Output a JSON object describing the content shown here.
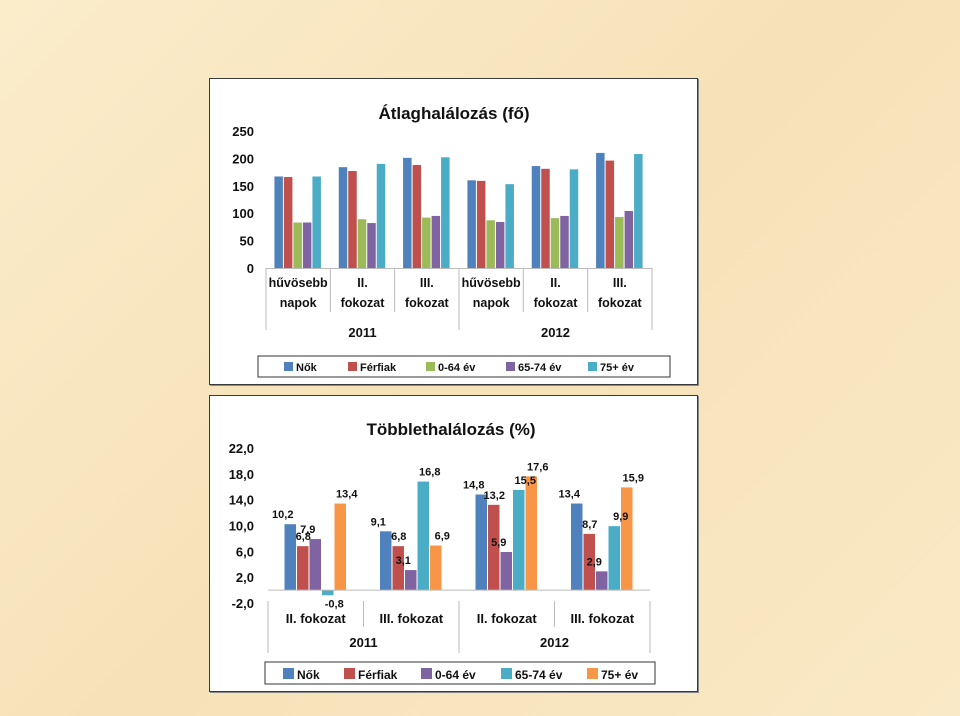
{
  "colors": {
    "blue": "#4f81bd",
    "red": "#c0504d",
    "green": "#9bbb59",
    "purple": "#8064a2",
    "teal": "#4bacc6",
    "orange": "#f79646"
  },
  "chart_data": [
    {
      "type": "bar",
      "title": "Átlaghalálozás (fő)",
      "categories": [
        "hűvösebb napok",
        "II. fokozat",
        "III. fokozat",
        "hűvösebb napok",
        "II. fokozat",
        "III. fokozat"
      ],
      "category_lines": [
        [
          "hűvösebb",
          "napok"
        ],
        [
          "II.",
          "fokozat"
        ],
        [
          "III.",
          "fokozat"
        ],
        [
          "hűvösebb",
          "napok"
        ],
        [
          "II.",
          "fokozat"
        ],
        [
          "III.",
          "fokozat"
        ]
      ],
      "groups": [
        "2011",
        "2012"
      ],
      "ylim": [
        0,
        250
      ],
      "yticks": [
        "0",
        "50",
        "100",
        "150",
        "200",
        "250"
      ],
      "legend_position": "bottom",
      "series": [
        {
          "name": "Nők",
          "color": "#4f81bd",
          "values": [
            167,
            184,
            201,
            160,
            186,
            210
          ]
        },
        {
          "name": "Férfiak",
          "color": "#c0504d",
          "values": [
            166,
            177,
            188,
            159,
            181,
            196
          ]
        },
        {
          "name": "0-64 év",
          "color": "#9bbb59",
          "values": [
            83,
            89,
            92,
            87,
            91,
            93
          ]
        },
        {
          "name": "65-74 év",
          "color": "#8064a2",
          "values": [
            83,
            82,
            95,
            84,
            95,
            104
          ]
        },
        {
          "name": "75+ év",
          "color": "#4bacc6",
          "values": [
            167,
            190,
            202,
            153,
            180,
            208
          ]
        }
      ]
    },
    {
      "type": "bar",
      "title": "Többlethalálozás (%)",
      "categories": [
        "II. fokozat",
        "III. fokozat",
        "II. fokozat",
        "III. fokozat"
      ],
      "groups": [
        "2011",
        "2012"
      ],
      "ylim": [
        -2,
        22
      ],
      "yticks": [
        "-2,0",
        "2,0",
        "6,0",
        "10,0",
        "14,0",
        "18,0",
        "22,0"
      ],
      "legend_position": "bottom",
      "series": [
        {
          "name": "Nők",
          "color": "#4f81bd",
          "values": [
            10.2,
            9.1,
            14.8,
            13.4
          ],
          "labels": [
            "10,2",
            "9,1",
            "14,8",
            "13,4"
          ]
        },
        {
          "name": "Férfiak",
          "color": "#c0504d",
          "values": [
            6.8,
            6.8,
            13.2,
            8.7
          ],
          "labels": [
            "6,8",
            "6,8",
            "13,2",
            "8,7"
          ]
        },
        {
          "name": "0-64 év",
          "color": "#8064a2",
          "values": [
            7.9,
            3.1,
            5.9,
            2.9
          ],
          "labels": [
            "7,9",
            "3,1",
            "5,9",
            "2,9"
          ]
        },
        {
          "name": "65-74 év",
          "color": "#4bacc6",
          "values": [
            -0.8,
            16.8,
            15.5,
            9.9
          ],
          "labels": [
            "-0,8",
            "16,8",
            "15,5",
            "9,9"
          ]
        },
        {
          "name": "75+ év",
          "color": "#f79646",
          "values": [
            13.4,
            6.9,
            17.6,
            15.9
          ],
          "labels": [
            "13,4",
            "6,9",
            "17,6",
            "15,9"
          ]
        }
      ]
    }
  ]
}
